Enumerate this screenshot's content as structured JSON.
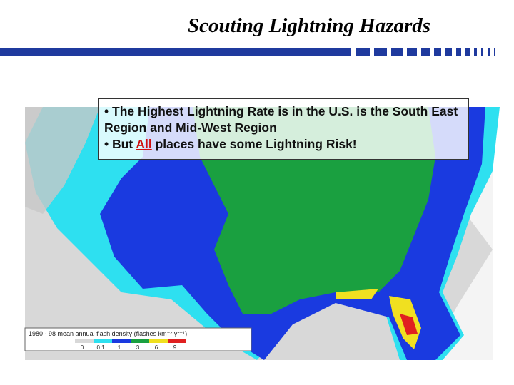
{
  "header": {
    "title": "Scouting Lightning Hazards"
  },
  "bullets": [
    {
      "parts": [
        "The Highest Lightning Rate is in the U.S. is the South East Region and Mid-West Region"
      ]
    },
    {
      "parts": [
        "But ",
        "All",
        " places have some Lightning Risk!"
      ]
    }
  ],
  "legend": {
    "title": "1980 - 98 mean annual flash density (flashes km⁻² yr⁻¹)",
    "labels": [
      "0",
      "0.1",
      "1",
      "3",
      "6",
      "9"
    ]
  }
}
